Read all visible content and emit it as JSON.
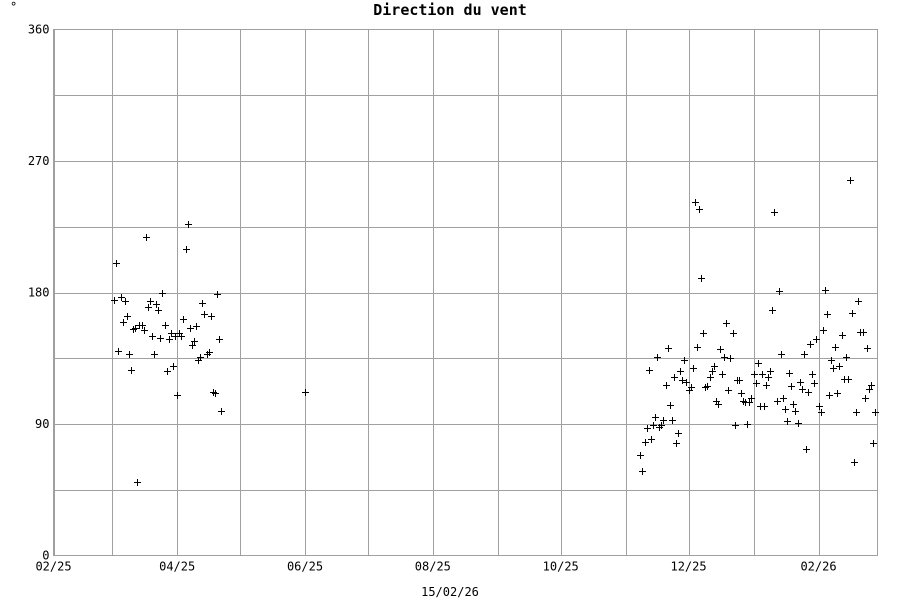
{
  "chart_data": {
    "type": "scatter",
    "title": "Direction du vent",
    "corner_label": "°",
    "footer_date": "15/02/26",
    "ylim": [
      0,
      360
    ],
    "y_ticks": [
      0,
      90,
      180,
      270,
      360
    ],
    "y_tick_labels": [
      "0",
      "90",
      "180",
      "270",
      "360"
    ],
    "x_ticks": [
      "2025-02-01",
      "2025-04-01",
      "2025-06-01",
      "2025-08-01",
      "2025-10-01",
      "2025-12-01",
      "2026-02-01"
    ],
    "x_tick_labels": [
      "02/25",
      "04/25",
      "06/25",
      "08/25",
      "10/25",
      "12/25",
      "02/26"
    ],
    "xlim": [
      "2025-02-01",
      "2026-02-28"
    ],
    "grid": true,
    "marker": "+",
    "series": [
      {
        "points": [
          [
            "2025-03-02",
            175
          ],
          [
            "2025-03-03",
            200
          ],
          [
            "2025-03-04",
            140
          ],
          [
            "2025-03-05",
            177
          ],
          [
            "2025-03-06",
            160
          ],
          [
            "2025-03-07",
            174
          ],
          [
            "2025-03-08",
            164
          ],
          [
            "2025-03-09",
            138
          ],
          [
            "2025-03-10",
            127
          ],
          [
            "2025-03-11",
            155
          ],
          [
            "2025-03-12",
            156
          ],
          [
            "2025-03-13",
            50
          ],
          [
            "2025-03-14",
            158
          ],
          [
            "2025-03-15",
            158
          ],
          [
            "2025-03-16",
            154
          ],
          [
            "2025-03-17",
            218
          ],
          [
            "2025-03-18",
            170
          ],
          [
            "2025-03-19",
            174
          ],
          [
            "2025-03-20",
            150
          ],
          [
            "2025-03-21",
            138
          ],
          [
            "2025-03-22",
            172
          ],
          [
            "2025-03-23",
            168
          ],
          [
            "2025-03-24",
            149
          ],
          [
            "2025-03-25",
            180
          ],
          [
            "2025-03-26",
            158
          ],
          [
            "2025-03-27",
            126
          ],
          [
            "2025-03-28",
            148
          ],
          [
            "2025-03-29",
            152
          ],
          [
            "2025-03-30",
            130
          ],
          [
            "2025-03-31",
            150
          ],
          [
            "2025-04-01",
            110
          ],
          [
            "2025-04-02",
            152
          ],
          [
            "2025-04-03",
            150
          ],
          [
            "2025-04-04",
            162
          ],
          [
            "2025-04-05",
            210
          ],
          [
            "2025-04-06",
            227
          ],
          [
            "2025-04-07",
            156
          ],
          [
            "2025-04-08",
            144
          ],
          [
            "2025-04-09",
            147
          ],
          [
            "2025-04-10",
            157
          ],
          [
            "2025-04-11",
            134
          ],
          [
            "2025-04-12",
            136
          ],
          [
            "2025-04-13",
            173
          ],
          [
            "2025-04-14",
            165
          ],
          [
            "2025-04-15",
            138
          ],
          [
            "2025-04-16",
            139
          ],
          [
            "2025-04-17",
            164
          ],
          [
            "2025-04-18",
            112
          ],
          [
            "2025-04-19",
            111
          ],
          [
            "2025-04-20",
            179
          ],
          [
            "2025-04-21",
            148
          ],
          [
            "2025-04-22",
            99
          ],
          [
            "2025-06-01",
            112
          ],
          [
            "2025-11-08",
            69
          ],
          [
            "2025-11-09",
            58
          ],
          [
            "2025-11-10",
            78
          ],
          [
            "2025-11-11",
            87
          ],
          [
            "2025-11-12",
            127
          ],
          [
            "2025-11-13",
            80
          ],
          [
            "2025-11-14",
            89
          ],
          [
            "2025-11-15",
            95
          ],
          [
            "2025-11-16",
            136
          ],
          [
            "2025-11-17",
            88
          ],
          [
            "2025-11-18",
            89
          ],
          [
            "2025-11-19",
            93
          ],
          [
            "2025-11-20",
            117
          ],
          [
            "2025-11-21",
            142
          ],
          [
            "2025-11-22",
            103
          ],
          [
            "2025-11-23",
            93
          ],
          [
            "2025-11-24",
            122
          ],
          [
            "2025-11-25",
            77
          ],
          [
            "2025-11-26",
            84
          ],
          [
            "2025-11-27",
            126
          ],
          [
            "2025-11-28",
            120
          ],
          [
            "2025-11-29",
            134
          ],
          [
            "2025-11-30",
            119
          ],
          [
            "2025-12-01",
            113
          ],
          [
            "2025-12-02",
            115
          ],
          [
            "2025-12-03",
            128
          ],
          [
            "2025-12-04",
            242
          ],
          [
            "2025-12-05",
            143
          ],
          [
            "2025-12-06",
            237
          ],
          [
            "2025-12-07",
            190
          ],
          [
            "2025-12-08",
            152
          ],
          [
            "2025-12-09",
            115
          ],
          [
            "2025-12-10",
            116
          ],
          [
            "2025-12-11",
            122
          ],
          [
            "2025-12-12",
            126
          ],
          [
            "2025-12-13",
            130
          ],
          [
            "2025-12-14",
            106
          ],
          [
            "2025-12-15",
            104
          ],
          [
            "2025-12-16",
            141
          ],
          [
            "2025-12-17",
            124
          ],
          [
            "2025-12-18",
            136
          ],
          [
            "2025-12-19",
            159
          ],
          [
            "2025-12-20",
            113
          ],
          [
            "2025-12-21",
            135
          ],
          [
            "2025-12-22",
            152
          ],
          [
            "2025-12-23",
            89
          ],
          [
            "2025-12-24",
            120
          ],
          [
            "2025-12-25",
            120
          ],
          [
            "2025-12-26",
            111
          ],
          [
            "2025-12-27",
            106
          ],
          [
            "2025-12-28",
            105
          ],
          [
            "2025-12-29",
            90
          ],
          [
            "2025-12-30",
            105
          ],
          [
            "2025-12-31",
            108
          ],
          [
            "2026-01-01",
            124
          ],
          [
            "2026-01-02",
            118
          ],
          [
            "2026-01-03",
            132
          ],
          [
            "2026-01-04",
            102
          ],
          [
            "2026-01-05",
            124
          ],
          [
            "2026-01-06",
            102
          ],
          [
            "2026-01-07",
            117
          ],
          [
            "2026-01-08",
            122
          ],
          [
            "2026-01-09",
            126
          ],
          [
            "2026-01-10",
            168
          ],
          [
            "2026-01-11",
            235
          ],
          [
            "2026-01-12",
            106
          ],
          [
            "2026-01-13",
            181
          ],
          [
            "2026-01-14",
            138
          ],
          [
            "2026-01-15",
            108
          ],
          [
            "2026-01-16",
            100
          ],
          [
            "2026-01-17",
            92
          ],
          [
            "2026-01-18",
            125
          ],
          [
            "2026-01-19",
            116
          ],
          [
            "2026-01-20",
            104
          ],
          [
            "2026-01-21",
            99
          ],
          [
            "2026-01-22",
            91
          ],
          [
            "2026-01-23",
            119
          ],
          [
            "2026-01-24",
            114
          ],
          [
            "2026-01-25",
            138
          ],
          [
            "2026-01-26",
            73
          ],
          [
            "2026-01-27",
            112
          ],
          [
            "2026-01-28",
            145
          ],
          [
            "2026-01-29",
            124
          ],
          [
            "2026-01-30",
            118
          ],
          [
            "2026-01-31",
            148
          ],
          [
            "2026-02-01",
            102
          ],
          [
            "2026-02-02",
            98
          ],
          [
            "2026-02-03",
            154
          ],
          [
            "2026-02-04",
            182
          ],
          [
            "2026-02-05",
            165
          ],
          [
            "2026-02-06",
            110
          ],
          [
            "2026-02-07",
            134
          ],
          [
            "2026-02-08",
            128
          ],
          [
            "2026-02-09",
            143
          ],
          [
            "2026-02-10",
            111
          ],
          [
            "2026-02-11",
            130
          ],
          [
            "2026-02-12",
            151
          ],
          [
            "2026-02-13",
            121
          ],
          [
            "2026-02-14",
            136
          ],
          [
            "2026-02-15",
            121
          ],
          [
            "2026-02-16",
            257
          ],
          [
            "2026-02-17",
            166
          ],
          [
            "2026-02-18",
            64
          ],
          [
            "2026-02-19",
            98
          ],
          [
            "2026-02-20",
            174
          ],
          [
            "2026-02-21",
            153
          ],
          [
            "2026-02-22",
            153
          ],
          [
            "2026-02-23",
            108
          ],
          [
            "2026-02-24",
            142
          ],
          [
            "2026-02-25",
            114
          ],
          [
            "2026-02-26",
            117
          ],
          [
            "2026-02-27",
            77
          ],
          [
            "2026-02-28",
            98
          ]
        ]
      }
    ]
  }
}
